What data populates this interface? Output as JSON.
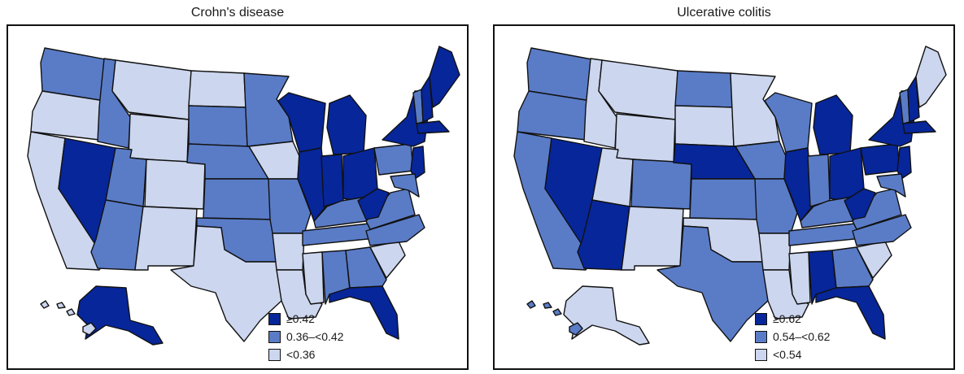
{
  "colors": {
    "high": "#07269a",
    "mid": "#5a7cc7",
    "low": "#ccd6ee"
  },
  "panels": [
    {
      "title": "Crohn's disease",
      "legend": [
        {
          "label": "≥0.42",
          "class": "high"
        },
        {
          "label": "0.36–<0.42",
          "class": "mid"
        },
        {
          "label": "<0.36",
          "class": "low"
        }
      ],
      "states": {
        "WA": "mid",
        "OR": "low",
        "CA": "low",
        "NV": "high",
        "ID": "mid",
        "MT": "low",
        "WY": "low",
        "UT": "mid",
        "AZ": "mid",
        "CO": "low",
        "NM": "low",
        "ND": "low",
        "SD": "mid",
        "NE": "mid",
        "KS": "mid",
        "OK": "mid",
        "TX": "low",
        "MN": "mid",
        "IA": "low",
        "MO": "mid",
        "AR": "low",
        "LA": "low",
        "WI": "high",
        "IL": "high",
        "MS": "low",
        "MI": "high",
        "IN": "high",
        "OH": "high",
        "KY": "mid",
        "TN": "mid",
        "AL": "mid",
        "GA": "mid",
        "FL": "high",
        "SC": "low",
        "NC": "mid",
        "VA": "mid",
        "WV": "high",
        "PA": "mid",
        "NY": "high",
        "VT": "mid",
        "NH": "high",
        "ME": "high",
        "MA": "high",
        "NJ": "high",
        "MD": "mid",
        "AK": "high",
        "HI": "low"
      }
    },
    {
      "title": "Ulcerative colitis",
      "legend": [
        {
          "label": "≥0.62",
          "class": "high"
        },
        {
          "label": "0.54–<0.62",
          "class": "mid"
        },
        {
          "label": "<0.54",
          "class": "low"
        }
      ],
      "states": {
        "WA": "mid",
        "OR": "mid",
        "CA": "mid",
        "NV": "high",
        "ID": "low",
        "MT": "low",
        "WY": "low",
        "UT": "low",
        "AZ": "high",
        "CO": "mid",
        "NM": "low",
        "ND": "mid",
        "SD": "low",
        "NE": "high",
        "KS": "mid",
        "OK": "low",
        "TX": "mid",
        "MN": "low",
        "IA": "mid",
        "MO": "mid",
        "AR": "low",
        "LA": "low",
        "WI": "mid",
        "IL": "high",
        "MS": "low",
        "MI": "high",
        "IN": "mid",
        "OH": "high",
        "KY": "mid",
        "TN": "mid",
        "AL": "high",
        "GA": "mid",
        "FL": "high",
        "SC": "low",
        "NC": "mid",
        "VA": "mid",
        "WV": "high",
        "PA": "high",
        "NY": "high",
        "VT": "mid",
        "NH": "high",
        "ME": "low",
        "MA": "high",
        "NJ": "high",
        "MD": "mid",
        "AK": "low",
        "HI": "mid"
      }
    }
  ]
}
